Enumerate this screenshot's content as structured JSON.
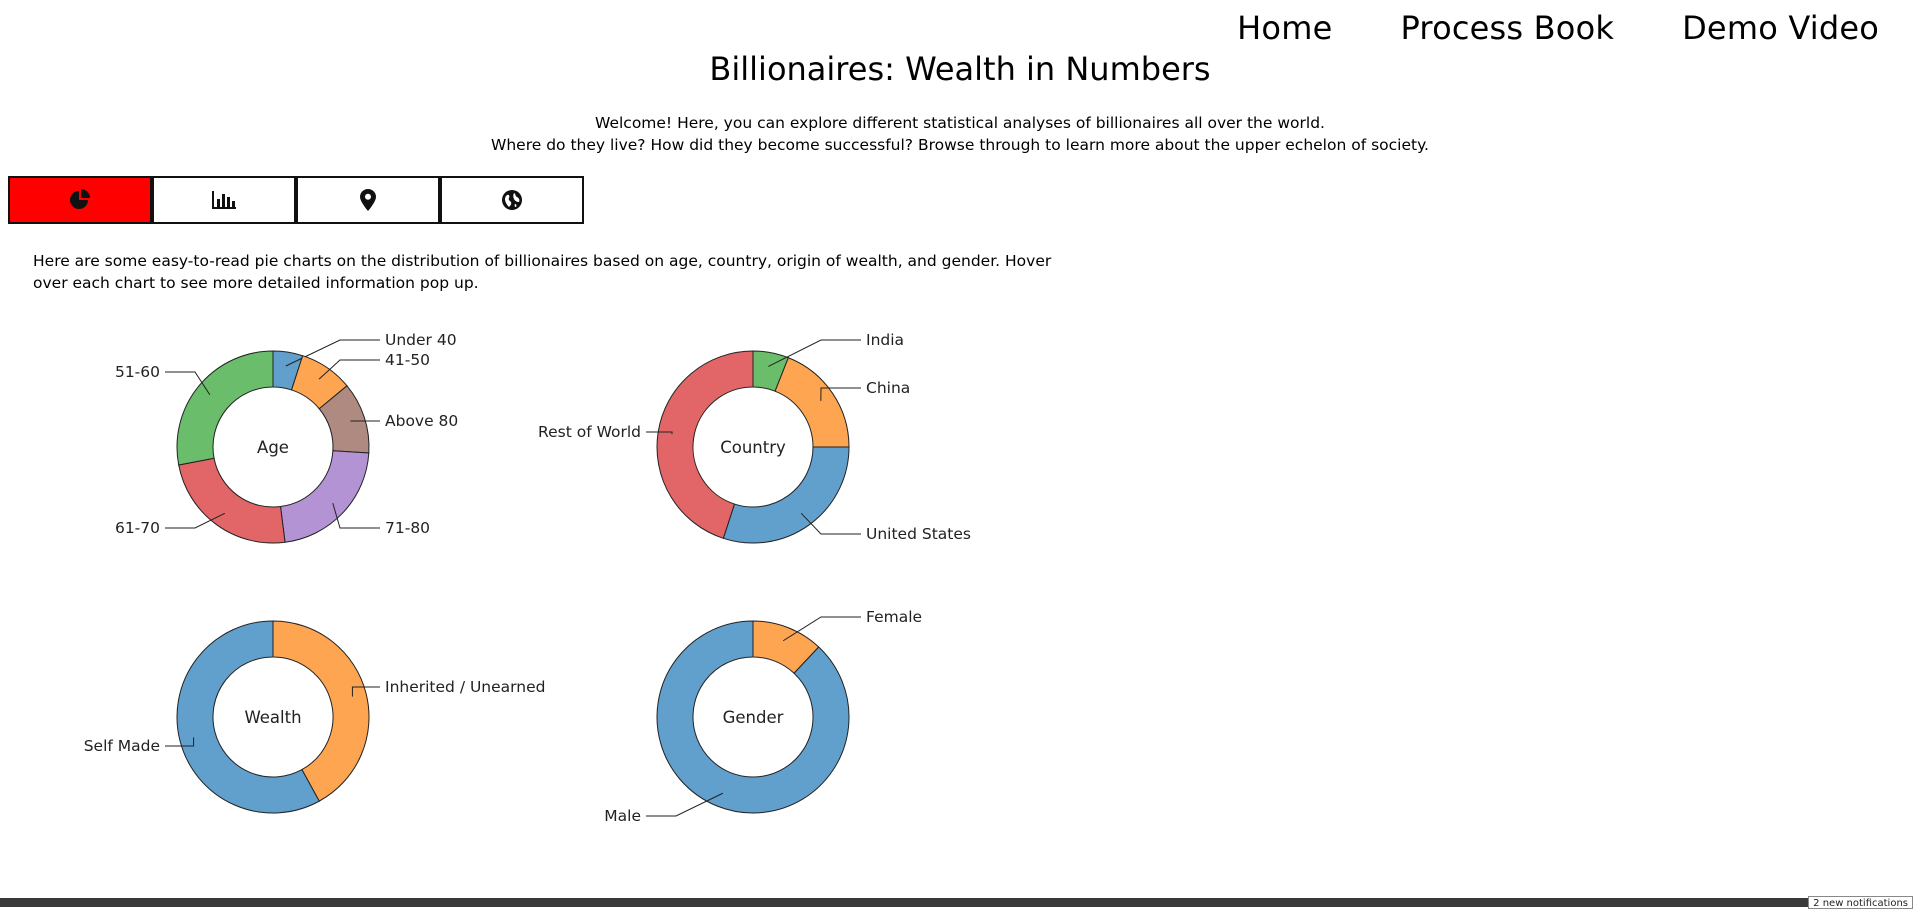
{
  "nav": {
    "home": "Home",
    "process_book": "Process Book",
    "demo_video": "Demo Video"
  },
  "title": "Billionaires: Wealth in Numbers",
  "intro": {
    "line1": "Welcome! Here, you can explore different statistical analyses of billionaires all over the world.",
    "line2": "Where do they live? How did they become successful? Browse through to learn more about the upper echelon of society."
  },
  "tabs": [
    {
      "icon": "pie-chart-icon",
      "active": true
    },
    {
      "icon": "bar-chart-icon",
      "active": false
    },
    {
      "icon": "map-pin-icon",
      "active": false
    },
    {
      "icon": "globe-icon",
      "active": false
    }
  ],
  "colors": {
    "active_tab": "#ff0000",
    "blue": "#61a0cd",
    "orange": "#fea552",
    "green": "#6abd6a",
    "red": "#e26667",
    "purple": "#b393d3",
    "brown": "#af8a80"
  },
  "description": "Here are some easy-to-read pie charts on the distribution of billionaires based on age, country, origin of wealth, and gender. Hover over each chart to see more detailed information pop up.",
  "chart_data": [
    {
      "type": "pie",
      "center_label": "Age",
      "slices": [
        {
          "label": "Under 40",
          "value": 5,
          "color": "#61a0cd"
        },
        {
          "label": "41-50",
          "value": 9,
          "color": "#fea552"
        },
        {
          "label": "Above 80",
          "value": 12,
          "color": "#af8a80"
        },
        {
          "label": "71-80",
          "value": 22,
          "color": "#b393d3"
        },
        {
          "label": "61-70",
          "value": 24,
          "color": "#e26667"
        },
        {
          "label": "51-60",
          "value": 28,
          "color": "#6abd6a"
        }
      ]
    },
    {
      "type": "pie",
      "center_label": "Country",
      "slices": [
        {
          "label": "India",
          "value": 6,
          "color": "#6abd6a"
        },
        {
          "label": "China",
          "value": 19,
          "color": "#fea552"
        },
        {
          "label": "United States",
          "value": 30,
          "color": "#61a0cd"
        },
        {
          "label": "Rest of World",
          "value": 45,
          "color": "#e26667"
        }
      ]
    },
    {
      "type": "pie",
      "center_label": "Wealth",
      "slices": [
        {
          "label": "Inherited / Unearned",
          "value": 42,
          "color": "#fea552"
        },
        {
          "label": "Self Made",
          "value": 58,
          "color": "#61a0cd"
        }
      ]
    },
    {
      "type": "pie",
      "center_label": "Gender",
      "slices": [
        {
          "label": "Female",
          "value": 12,
          "color": "#fea552"
        },
        {
          "label": "Male",
          "value": 88,
          "color": "#61a0cd"
        }
      ]
    }
  ],
  "notification": "2 new notifications"
}
